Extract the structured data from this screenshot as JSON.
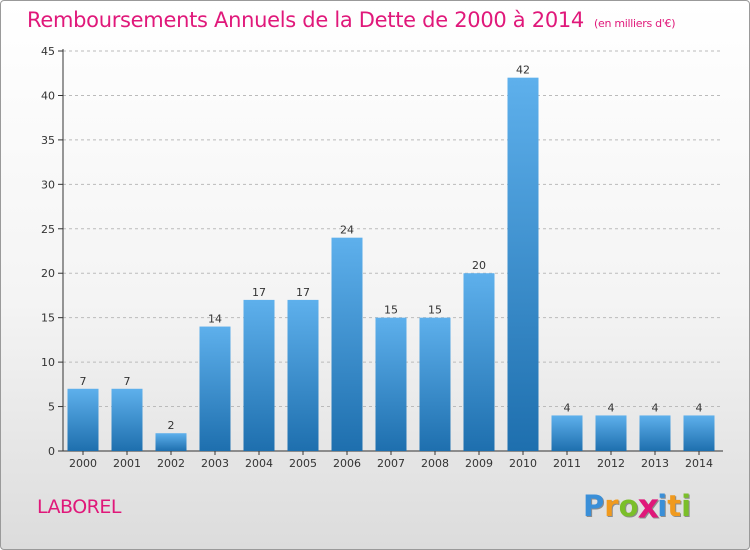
{
  "title": "Remboursements Annuels de la Dette de 2000 à 2014",
  "unit": "(en milliers d'€)",
  "commune": "LABOREL",
  "brand": {
    "letters": [
      "P",
      "r",
      "o",
      "x",
      "i",
      "t",
      "i"
    ],
    "colors": [
      "#3a8fd8",
      "#f09a1e",
      "#7bbf2a",
      "#e0187a",
      "#3a8fd8",
      "#f09a1e",
      "#7bbf2a"
    ]
  },
  "colors": {
    "accent": "#e0187a",
    "bar_top": "#5eb0ec",
    "bar_bottom": "#1e6fae",
    "axis": "#333333",
    "grid": "#bbbbbb"
  },
  "chart_data": {
    "type": "bar",
    "categories": [
      "2000",
      "2001",
      "2002",
      "2003",
      "2004",
      "2005",
      "2006",
      "2007",
      "2008",
      "2009",
      "2010",
      "2011",
      "2012",
      "2013",
      "2014"
    ],
    "values": [
      7,
      7,
      2,
      14,
      17,
      17,
      24,
      15,
      15,
      20,
      42,
      4,
      4,
      4,
      4
    ],
    "yticks": [
      0,
      5,
      10,
      15,
      20,
      25,
      30,
      35,
      40,
      45
    ],
    "ylim": [
      0,
      45
    ],
    "grid": "horizontal dashed",
    "legend": "none"
  }
}
